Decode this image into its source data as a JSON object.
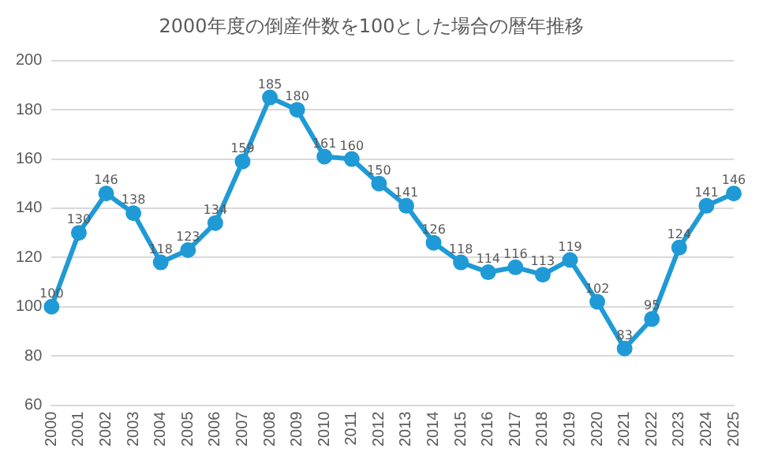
{
  "chart_data": {
    "type": "line",
    "title": "2000年度の倒産件数を100とした場合の暦年推移",
    "categories": [
      "2000",
      "2001",
      "2002",
      "2003",
      "2004",
      "2005",
      "2006",
      "2007",
      "2008",
      "2009",
      "2010",
      "2011",
      "2012",
      "2013",
      "2014",
      "2015",
      "2016",
      "2017",
      "2018",
      "2019",
      "2020",
      "2021",
      "2022",
      "2023",
      "2024",
      "2025"
    ],
    "series": [
      {
        "color": "#1f9ad6",
        "values": [
          100,
          130,
          146,
          138,
          118,
          123,
          134,
          159,
          185,
          180,
          161,
          160,
          150,
          141,
          126,
          118,
          114,
          116,
          113,
          119,
          102,
          83,
          95,
          124,
          141,
          146
        ]
      }
    ],
    "ylim": [
      60,
      200
    ],
    "yticks": [
      60,
      80,
      100,
      120,
      140,
      160,
      180,
      200
    ],
    "grid": "y",
    "legend": false,
    "marker": "circle",
    "line_style": "solid",
    "data_labels": true
  }
}
